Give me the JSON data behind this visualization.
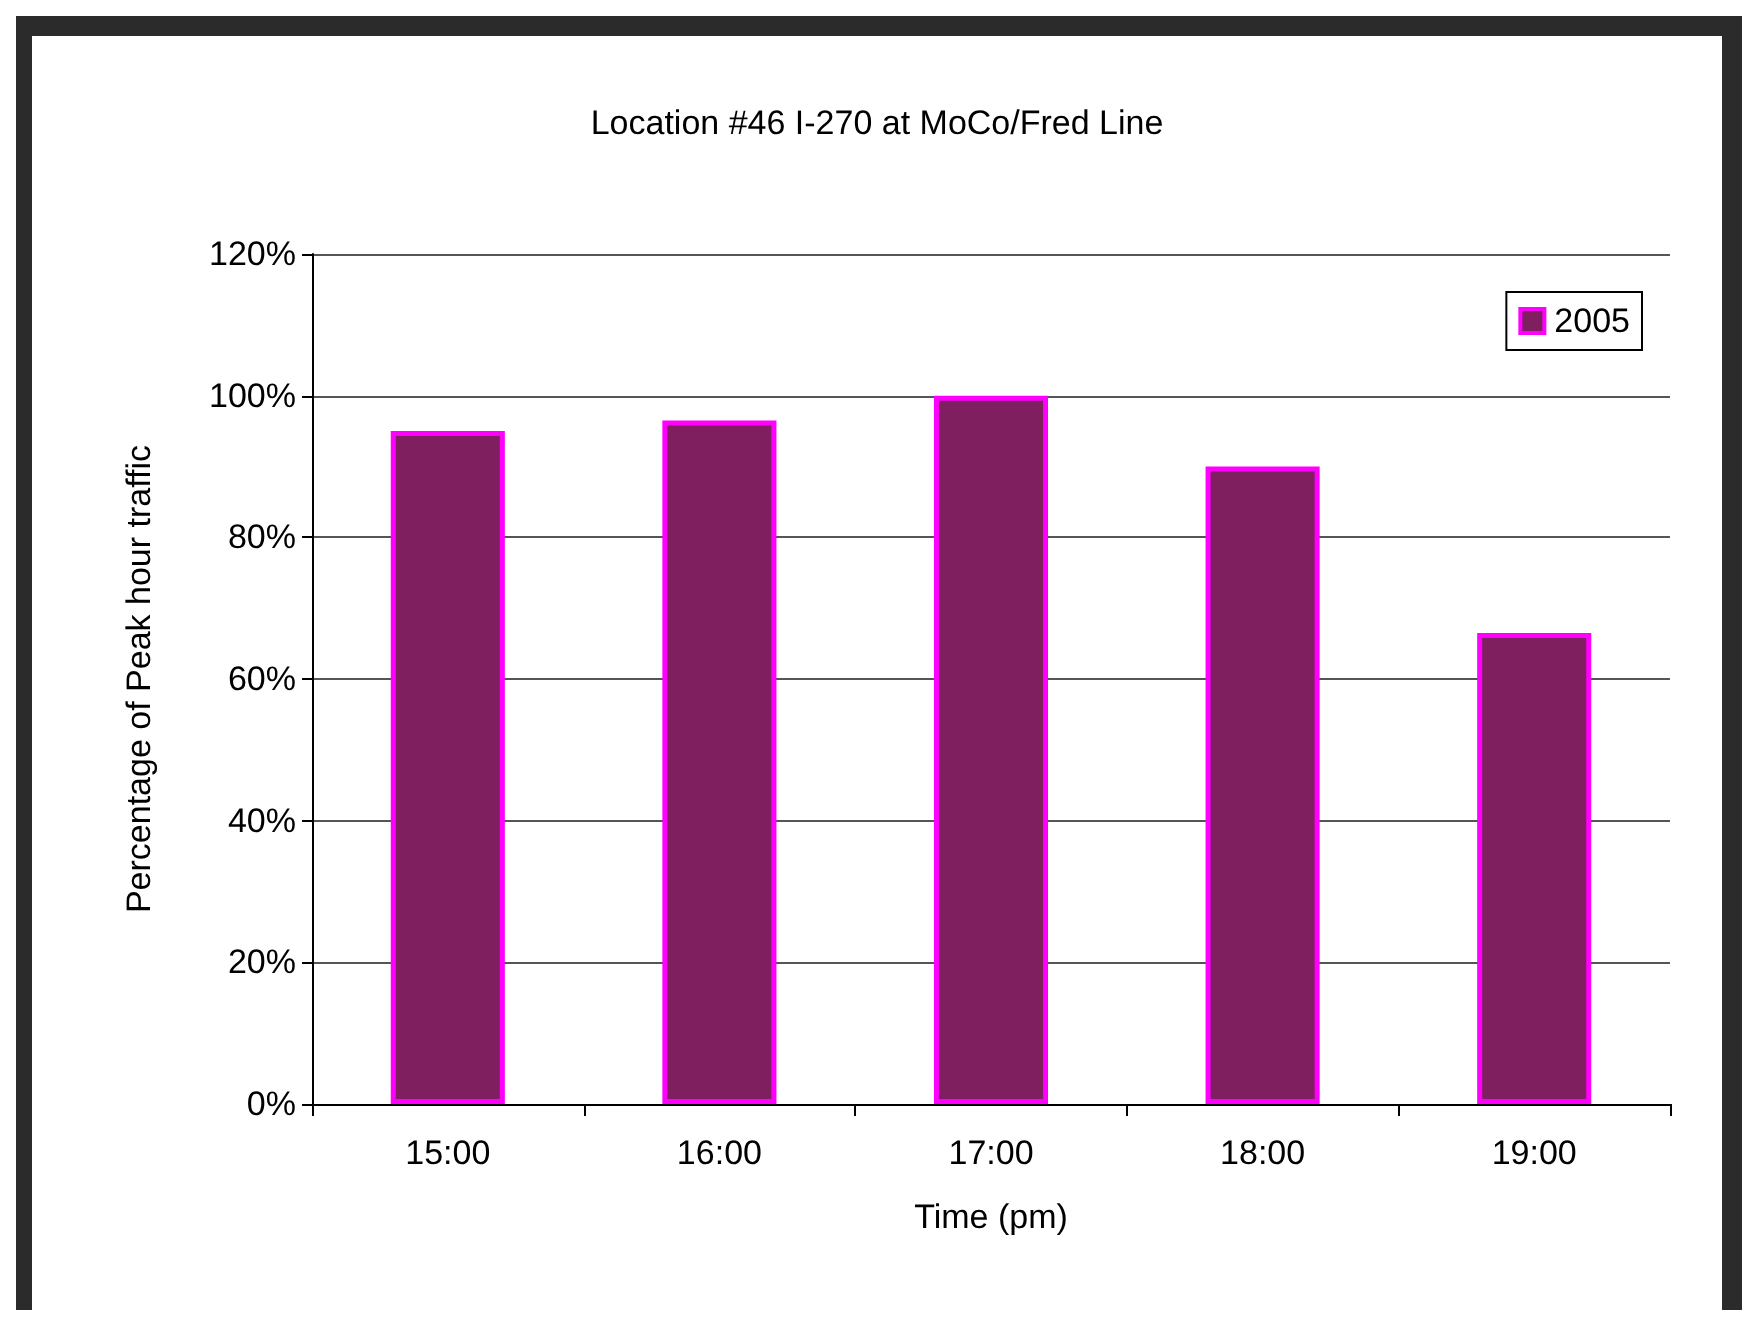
{
  "chart_data": {
    "type": "bar",
    "title": "Location #46 I-270 at MoCo/Fred Line",
    "xlabel": "Time (pm)",
    "ylabel": "Percentage of Peak hour traffic",
    "categories": [
      "15:00",
      "16:00",
      "17:00",
      "18:00",
      "19:00"
    ],
    "series": [
      {
        "name": "2005",
        "color": "#7f1f5f",
        "values": [
          95,
          96.5,
          100,
          90,
          66.5
        ]
      }
    ],
    "ylim": [
      0,
      120
    ],
    "yticks": [
      {
        "value": 0,
        "label": "0%"
      },
      {
        "value": 20,
        "label": "20%"
      },
      {
        "value": 40,
        "label": "40%"
      },
      {
        "value": 60,
        "label": "60%"
      },
      {
        "value": 80,
        "label": "80%"
      },
      {
        "value": 100,
        "label": "100%"
      },
      {
        "value": 120,
        "label": "120%"
      }
    ],
    "grid": "y",
    "legend": "top right"
  }
}
